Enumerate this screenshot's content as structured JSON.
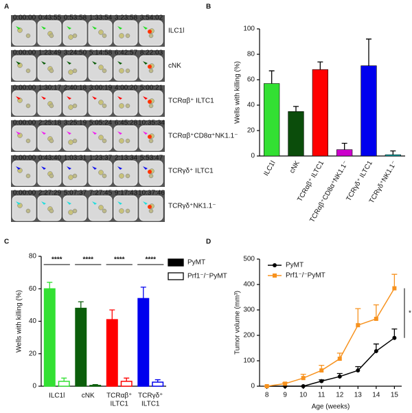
{
  "panel_a": {
    "panel": "A",
    "rows": [
      {
        "label": "ILC1l",
        "color": "#22dd22",
        "times": [
          "0:00:00",
          "0:43:55",
          "0:53:58",
          "1:33:54",
          "3:23:58",
          "3:54:02"
        ]
      },
      {
        "label": "cNK",
        "color": "#0b5e0b",
        "times": [
          "0:00:00",
          "1:23:49",
          "3:24:50",
          "5:14:58",
          "6:42:57",
          "8:22:03"
        ]
      },
      {
        "label": "TCRαβ⁺ ILTC1",
        "color": "#ff0000",
        "times": [
          "0:00:00",
          "1:30:17",
          "2:40:18",
          "3:00:19",
          "4:00:20",
          "5:00:21"
        ]
      },
      {
        "label": "TCRαβ⁺CD8α⁺NK1.1⁻",
        "color": "#ee22ee",
        "times": [
          "0:00:00",
          "2:25:18",
          "3:25:19",
          "5:05:24",
          "6:45:28",
          "10:35:34"
        ]
      },
      {
        "label": "TCRγδ⁺ ILTC1",
        "color": "#1111ee",
        "times": [
          "0:00:00",
          "0:43:40",
          "1:03:31",
          "1:23:37",
          "2:13:34",
          "5:53:47"
        ]
      },
      {
        "label": "TCRγδ⁺NK1.1⁻",
        "color": "#22dddd",
        "times": [
          "0:00:00",
          "2:27:29",
          "5:07:37",
          "7:27:45",
          "9:17:43",
          "10:37:46"
        ]
      }
    ]
  },
  "chart_data": [
    {
      "type": "bar",
      "panel": "B",
      "y_label": "Wells with killing (%)",
      "categories": [
        "ILC1l",
        "cNK",
        "TCRαβ⁺ ILTC1",
        "TCRαβ⁺CD8α⁺NK1.1⁻",
        "TCRγδ⁺ ILTC1",
        "TCRγδ⁺NK1.1⁻"
      ],
      "values": [
        57,
        35,
        68,
        5,
        71,
        1
      ],
      "errors": [
        10,
        4,
        6,
        5,
        21,
        3
      ],
      "colors": [
        "#33e033",
        "#0b4d0b",
        "#ff0000",
        "#cc00cc",
        "#0000ee",
        "#00bbbb"
      ],
      "ylim": [
        0,
        100
      ],
      "yticks": [
        0,
        20,
        40,
        60,
        80,
        100
      ]
    },
    {
      "type": "grouped_bar",
      "panel": "C",
      "y_label": "Wells with killing (%)",
      "categories": [
        [
          "ILC1l"
        ],
        [
          "cNK"
        ],
        [
          "TCRαβ⁺",
          "ILTC1"
        ],
        [
          "TCRγδ⁺",
          "ILTC1"
        ]
      ],
      "colors": [
        "#33e033",
        "#0b5e0b",
        "#ff0000",
        "#0000ee"
      ],
      "series": [
        {
          "name": "PyMT",
          "style": "filled",
          "values": [
            60,
            48,
            41,
            54
          ],
          "errors": [
            4,
            4,
            6,
            7
          ]
        },
        {
          "name": "Prf1⁻/⁻PyMT",
          "style": "open",
          "values": [
            3,
            0.5,
            3,
            2.5
          ],
          "errors": [
            2,
            0.5,
            2,
            1.5
          ]
        }
      ],
      "significance": [
        "****",
        "****",
        "****",
        "****"
      ],
      "ylim": [
        0,
        80
      ],
      "yticks": [
        0,
        20,
        40,
        60,
        80
      ]
    },
    {
      "type": "line",
      "panel": "D",
      "x_label": "Age (weeks)",
      "y_label": "Tumor volume (mm³)",
      "x": [
        8,
        9,
        10,
        11,
        12,
        13,
        14,
        15
      ],
      "series": [
        {
          "name": "PyMT",
          "color": "#000000",
          "marker": "circle",
          "values": [
            0,
            0,
            0,
            20,
            38,
            62,
            138,
            190
          ],
          "errors": [
            0,
            0,
            0,
            5,
            12,
            15,
            28,
            35
          ]
        },
        {
          "name": "Prf1⁻/⁻PyMT",
          "color": "#f7921e",
          "marker": "square",
          "values": [
            0,
            10,
            32,
            62,
            108,
            240,
            265,
            385
          ],
          "errors": [
            0,
            4,
            15,
            20,
            22,
            65,
            55,
            55
          ]
        }
      ],
      "significance": "*",
      "xlim": [
        7.6,
        15.4
      ],
      "xticks": [
        8,
        9,
        10,
        11,
        12,
        13,
        14,
        15
      ],
      "ylim": [
        0,
        500
      ],
      "yticks": [
        0,
        100,
        200,
        300,
        400,
        500
      ]
    }
  ]
}
